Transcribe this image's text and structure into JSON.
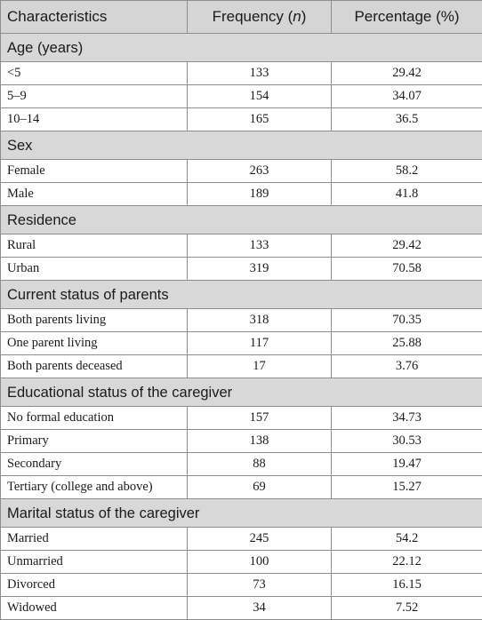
{
  "header": {
    "characteristics": "Characteristics",
    "frequency_text": "Frequency (",
    "frequency_italic": "n",
    "frequency_close": ")",
    "percentage": "Percentage (%)"
  },
  "sections": [
    {
      "title": "Age (years)",
      "rows": [
        {
          "label": "<5",
          "n": "133",
          "pct": "29.42"
        },
        {
          "label": "5–9",
          "n": "154",
          "pct": "34.07"
        },
        {
          "label": "10–14",
          "n": "165",
          "pct": "36.5"
        }
      ]
    },
    {
      "title": "Sex",
      "rows": [
        {
          "label": "Female",
          "n": "263",
          "pct": "58.2"
        },
        {
          "label": "Male",
          "n": "189",
          "pct": "41.8"
        }
      ]
    },
    {
      "title": "Residence",
      "rows": [
        {
          "label": "Rural",
          "n": "133",
          "pct": "29.42"
        },
        {
          "label": "Urban",
          "n": "319",
          "pct": "70.58"
        }
      ]
    },
    {
      "title": "Current status of parents",
      "rows": [
        {
          "label": "Both parents living",
          "n": "318",
          "pct": "70.35"
        },
        {
          "label": "One parent living",
          "n": "117",
          "pct": "25.88"
        },
        {
          "label": "Both parents deceased",
          "n": "17",
          "pct": "3.76"
        }
      ]
    },
    {
      "title": "Educational status of the caregiver",
      "rows": [
        {
          "label": "No formal education",
          "n": "157",
          "pct": "34.73"
        },
        {
          "label": "Primary",
          "n": "138",
          "pct": "30.53"
        },
        {
          "label": "Secondary",
          "n": "88",
          "pct": "19.47"
        },
        {
          "label": "Tertiary (college and above)",
          "n": "69",
          "pct": "15.27"
        }
      ]
    },
    {
      "title": "Marital status of the caregiver",
      "rows": [
        {
          "label": "Married",
          "n": "245",
          "pct": "54.2"
        },
        {
          "label": "Unmarried",
          "n": "100",
          "pct": "22.12"
        },
        {
          "label": "Divorced",
          "n": "73",
          "pct": "16.15"
        },
        {
          "label": "Widowed",
          "n": "34",
          "pct": "7.52"
        }
      ]
    }
  ]
}
